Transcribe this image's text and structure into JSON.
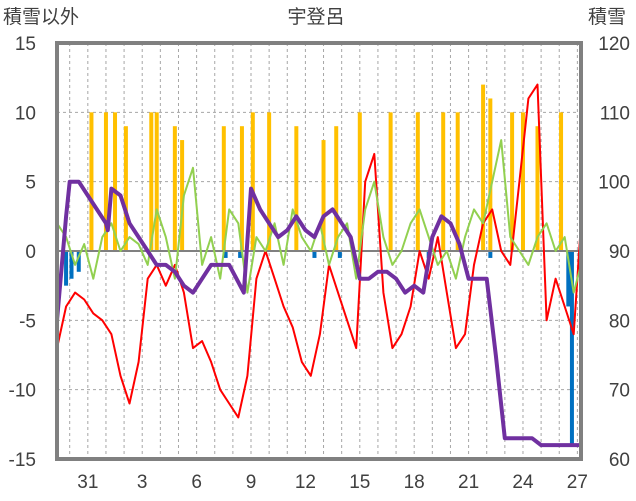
{
  "chart_data": {
    "type": "line",
    "title": "宇登呂",
    "ylabel_left": "積雪以外",
    "ylabel_right": "積雪",
    "ylim_left": [
      -15,
      15
    ],
    "ylim_right": [
      60,
      120
    ],
    "yticks_left": [
      "15",
      "10",
      "5",
      "0",
      "-5",
      "-10",
      "-15"
    ],
    "yticks_right": [
      "120",
      "110",
      "100",
      "90",
      "80",
      "70",
      "60"
    ],
    "xticks": [
      "31",
      "3",
      "6",
      "9",
      "12",
      "15",
      "18",
      "21",
      "24",
      "27"
    ],
    "xlim": [
      29.3,
      58.2
    ],
    "xtick_positions": [
      31,
      34,
      37,
      40,
      43,
      46,
      49,
      52,
      55,
      58
    ],
    "grid": true,
    "colors": {
      "temperature": "#ff0000",
      "wind": "#92d050",
      "snowfall": "#ffc000",
      "precipitation": "#0070c0",
      "snow_depth": "#7030a0",
      "frame": "#808080",
      "zero_line": "#808080"
    },
    "series": [
      {
        "key": "temperature",
        "axis": "left",
        "x": [
          29.3,
          29.8,
          30.3,
          30.8,
          31.3,
          31.8,
          32.3,
          32.8,
          33.3,
          33.8,
          34.3,
          34.8,
          35.3,
          35.8,
          36.3,
          36.8,
          37.3,
          37.8,
          38.3,
          38.8,
          39.3,
          39.8,
          40.3,
          40.8,
          41.3,
          41.8,
          42.3,
          42.8,
          43.3,
          43.8,
          44.3,
          44.8,
          45.3,
          45.8,
          46.3,
          46.8,
          47.3,
          47.8,
          48.3,
          48.8,
          49.3,
          49.8,
          50.3,
          50.8,
          51.3,
          51.8,
          52.3,
          52.8,
          53.3,
          53.8,
          54.3,
          54.8,
          55.3,
          55.8,
          56.3,
          56.8,
          57.3,
          57.8,
          58.2
        ],
        "values": [
          -7,
          -4,
          -3,
          -3.5,
          -4.5,
          -5,
          -6,
          -9,
          -11,
          -8,
          -2,
          -1,
          -2.5,
          -1,
          -3,
          -7,
          -6.5,
          -8,
          -10,
          -11,
          -12,
          -9,
          -2,
          0,
          -2,
          -4,
          -5.5,
          -8,
          -9,
          -6,
          -1,
          -3,
          -5,
          -7,
          5,
          7,
          -3,
          -7,
          -6,
          -4,
          0,
          -2,
          1,
          -3,
          -7,
          -6,
          -1,
          2,
          3,
          0,
          -1,
          5,
          11,
          12,
          -5,
          -2,
          -4,
          -6,
          2
        ]
      },
      {
        "key": "wind",
        "axis": "left",
        "x": [
          29.3,
          29.8,
          30.3,
          30.8,
          31.3,
          31.8,
          32.3,
          32.8,
          33.3,
          33.8,
          34.3,
          34.8,
          35.3,
          35.8,
          36.3,
          36.8,
          37.3,
          37.8,
          38.3,
          38.8,
          39.3,
          39.8,
          40.3,
          40.8,
          41.3,
          41.8,
          42.3,
          42.8,
          43.3,
          43.8,
          44.3,
          44.8,
          45.3,
          45.8,
          46.3,
          46.8,
          47.3,
          47.8,
          48.3,
          48.8,
          49.3,
          49.8,
          50.3,
          50.8,
          51.3,
          51.8,
          52.3,
          52.8,
          53.3,
          53.8,
          54.3,
          54.8,
          55.3,
          55.8,
          56.3,
          56.8,
          57.3,
          57.8,
          58.2
        ],
        "values": [
          2,
          1,
          -1,
          0.5,
          -2,
          1,
          2,
          0,
          1,
          0.5,
          -1,
          3,
          1,
          -2,
          4,
          6,
          -1,
          1,
          -2,
          3,
          2,
          -3,
          1,
          0,
          2,
          -1,
          3,
          1,
          0,
          2,
          -1,
          1,
          2,
          -2,
          3,
          5,
          1,
          -1,
          0,
          2,
          3,
          1,
          -1,
          0,
          -2,
          1,
          3,
          2,
          5,
          8,
          1,
          0,
          -1,
          1,
          2,
          0,
          1,
          -3,
          -1
        ]
      },
      {
        "key": "snow_depth",
        "axis": "right",
        "x": [
          29.3,
          29.8,
          30.0,
          30.5,
          31.0,
          31.5,
          32.0,
          32.1,
          32.3,
          32.8,
          33.3,
          33.8,
          34.3,
          34.8,
          35.3,
          35.8,
          36.3,
          36.8,
          37.3,
          37.8,
          38.3,
          38.8,
          39.2,
          39.6,
          40.0,
          40.5,
          41.0,
          41.5,
          42.0,
          42.5,
          43.0,
          43.5,
          44.0,
          44.5,
          45.0,
          45.5,
          46.0,
          46.5,
          47.0,
          47.5,
          48.0,
          48.5,
          49.0,
          49.5,
          50.0,
          50.5,
          51.0,
          51.5,
          52.0,
          52.5,
          53.0,
          53.5,
          54.0,
          54.5,
          55.0,
          55.5,
          56.0,
          56.5,
          57.0,
          57.5,
          58.2
        ],
        "values": [
          80,
          95,
          100,
          100,
          98,
          96,
          94,
          93,
          99,
          98,
          94,
          92,
          90,
          88,
          88,
          87,
          85,
          84,
          86,
          88,
          88,
          88,
          86,
          84,
          99,
          96,
          94,
          92,
          93,
          95,
          93,
          92,
          95,
          96,
          94,
          92,
          86,
          86,
          87,
          87,
          86,
          84,
          85,
          84,
          92,
          95,
          94,
          91,
          86,
          86,
          86,
          75,
          63,
          63,
          63,
          63,
          62,
          62,
          62,
          62,
          62
        ]
      }
    ],
    "bars": [
      {
        "key": "snowfall",
        "axis": "left",
        "x": [
          31.2,
          32.0,
          32.5,
          33.1,
          34.5,
          34.8,
          35.8,
          36.2,
          38.5,
          39.5,
          40.1,
          41.0,
          42.5,
          44.0,
          44.7,
          46.0,
          47.7,
          49.2,
          50.6,
          51.4,
          52.8,
          53.2,
          54.4,
          55.0,
          55.8,
          57.1
        ],
        "values": [
          10,
          10,
          10,
          9,
          10,
          10,
          9,
          8,
          9,
          9,
          10,
          10,
          9,
          8,
          9,
          10,
          10,
          10,
          10,
          10,
          12,
          11,
          10,
          10,
          9,
          10
        ]
      },
      {
        "key": "precipitation",
        "axis": "left",
        "x": [
          29.8,
          30.1,
          30.5,
          38.6,
          39.4,
          43.5,
          44.9,
          49.8,
          53.2,
          57.5,
          57.7
        ],
        "values": [
          -2.5,
          -2,
          -1.5,
          -0.5,
          -0.5,
          -0.5,
          -0.5,
          -0.5,
          -0.5,
          -4,
          -14
        ]
      }
    ]
  }
}
